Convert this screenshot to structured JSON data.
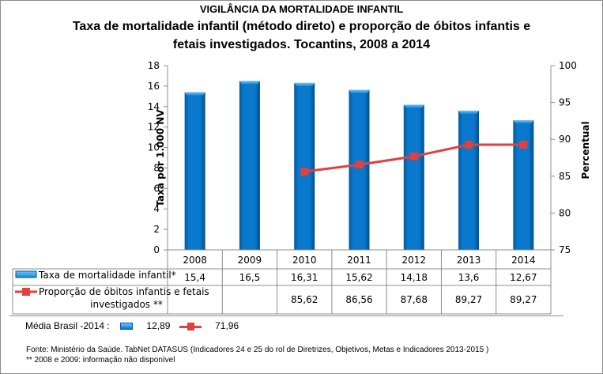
{
  "header": {
    "supertitle": "VIGILÂNCIA DA MORTALIDADE INFANTIL",
    "title_line1": "Taxa de mortalidade infantil (método direto) e proporção de óbitos infantis e",
    "title_line2": "fetais investigados. Tocantins, 2008 a 2014"
  },
  "chart_data": {
    "type": "bar",
    "title": "Taxa de mortalidade infantil (método direto) e proporção de óbitos infantis e fetais investigados. Tocantins, 2008 a 2014",
    "categories": [
      "2008",
      "2009",
      "2010",
      "2011",
      "2012",
      "2013",
      "2014"
    ],
    "series": [
      {
        "name": "Taxa de mortalidade infantil*",
        "type": "bar",
        "axis": "left",
        "color": "#0070c0",
        "values": [
          15.4,
          16.5,
          16.31,
          15.62,
          14.18,
          13.6,
          12.67
        ],
        "labels": [
          "15,4",
          "16,5",
          "16,31",
          "15,62",
          "14,18",
          "13,6",
          "12,67"
        ]
      },
      {
        "name": "Proporção de óbitos infantis e fetais investigados **",
        "name_line1": "Proporção de óbitos infantis e fetais",
        "name_line2": "investigados **",
        "type": "line",
        "axis": "right",
        "color": "#e04040",
        "values": [
          null,
          null,
          85.62,
          86.56,
          87.68,
          89.27,
          89.27
        ],
        "labels": [
          "",
          "",
          "85,62",
          "86,56",
          "87,68",
          "89,27",
          "89,27"
        ]
      }
    ],
    "ylabel": "Taxa  por 1.000 NV",
    "ylim": [
      0,
      18
    ],
    "yticks": [
      "0",
      "2",
      "4",
      "6",
      "8",
      "10",
      "12",
      "14",
      "16",
      "18"
    ],
    "y2label": "Percentual",
    "y2lim": [
      75,
      100
    ],
    "y2ticks": [
      "75",
      "80",
      "85",
      "90",
      "95",
      "100"
    ],
    "grid": false,
    "legend": "data-table-bottom"
  },
  "media_brasil": {
    "label": "Média Brasil -2014 :",
    "bar_value": "12,89",
    "line_value": "71,96"
  },
  "footer": {
    "source": "Fonte: Ministério da Saúde. TabNet DATASUS (Indicadores 24 e 25 do rol de Diretrizes, Objetivos, Metas e Indicadores 2013-2015 )",
    "note": "** 2008 e 2009: informação não disponível"
  }
}
